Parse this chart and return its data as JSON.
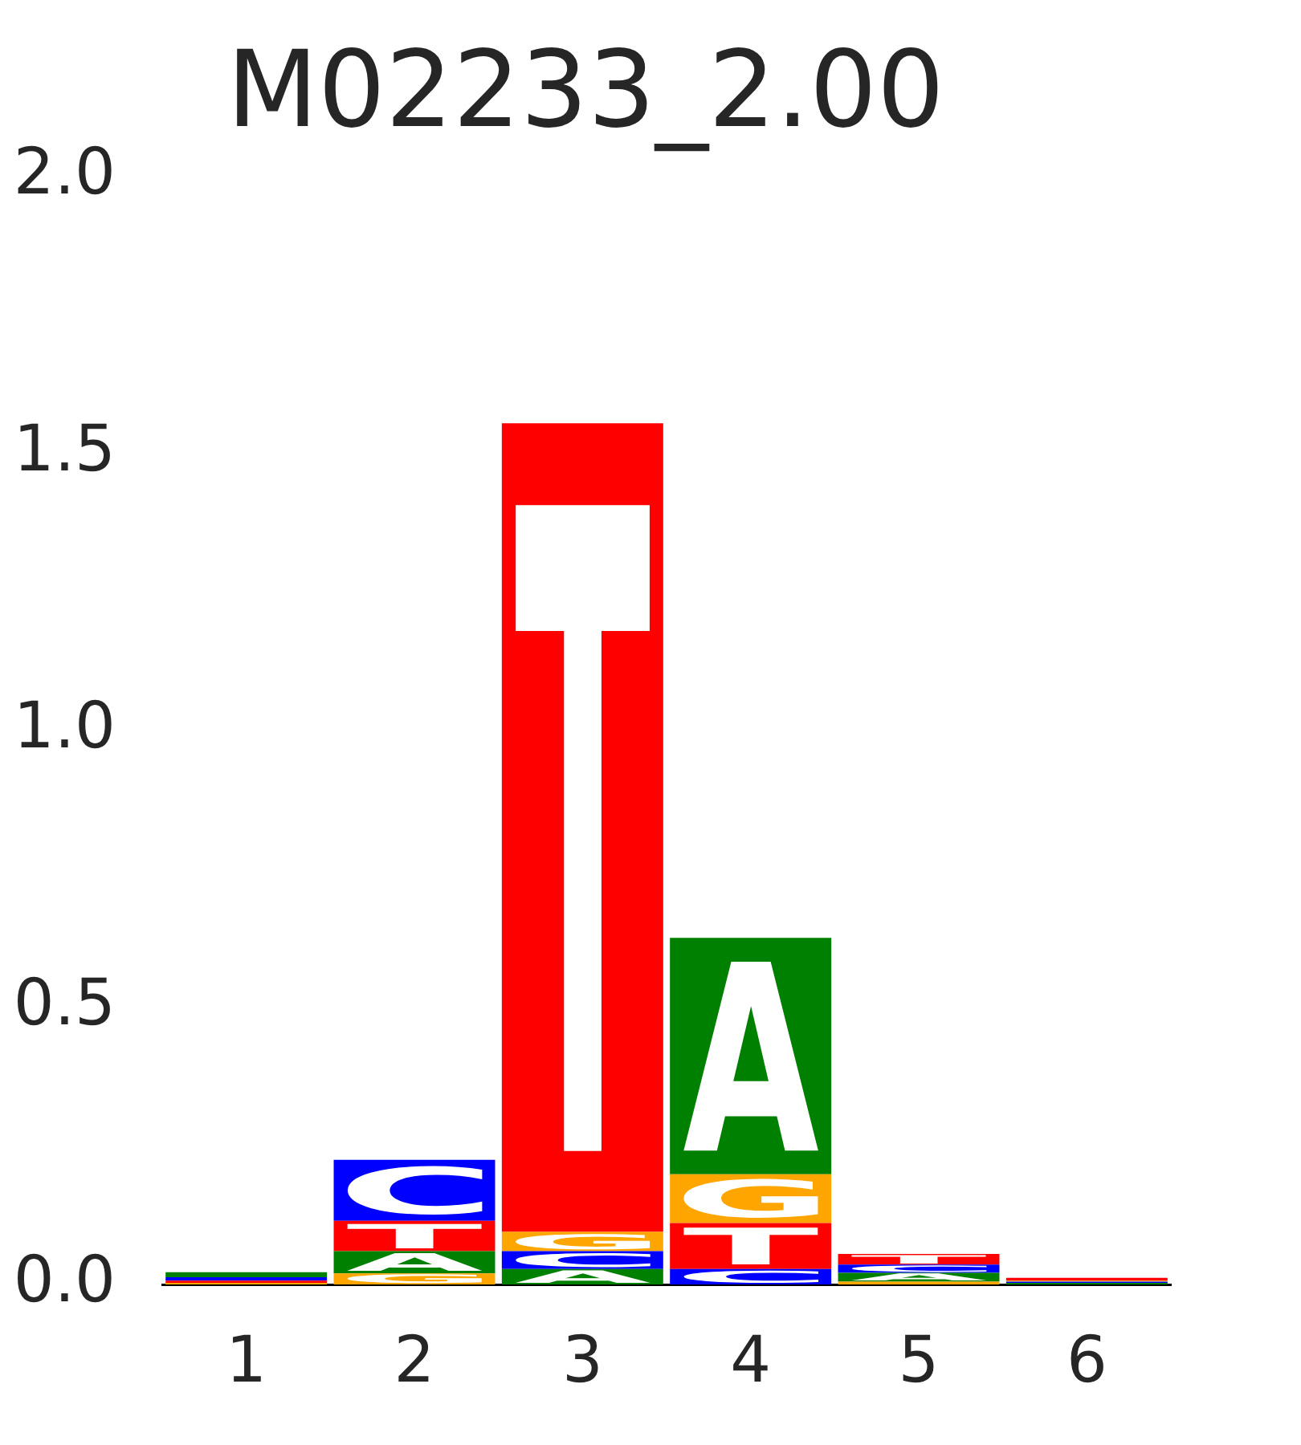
{
  "chart_data": {
    "type": "bar",
    "title": "M02233_2.00",
    "categories": [
      "1",
      "2",
      "3",
      "4",
      "5",
      "6"
    ],
    "stacked": true,
    "series": [
      {
        "values": [
          0.003,
          0.02,
          0.028,
          0.028,
          0.005,
          0.003
        ],
        "colors": [
          "#ffa500",
          "#ffa500",
          "#008000",
          "#0000ff",
          "#ffa500",
          "#008000"
        ],
        "value_labels": [
          null,
          "G",
          "A",
          "C",
          null,
          null
        ]
      },
      {
        "values": [
          0.004,
          0.04,
          0.032,
          0.083,
          0.016,
          0.002
        ],
        "colors": [
          "#ff0000",
          "#008000",
          "#0000ff",
          "#ff0000",
          "#008000",
          "#0000ff"
        ],
        "value_labels": [
          null,
          "A",
          "C",
          "T",
          "A",
          null
        ]
      },
      {
        "values": [
          0.006,
          0.055,
          0.035,
          0.088,
          0.015,
          0.002
        ],
        "colors": [
          "#0000ff",
          "#ff0000",
          "#ffa500",
          "#ffa500",
          "#0000ff",
          "#ffa500"
        ],
        "value_labels": [
          null,
          "T",
          "G",
          "G",
          "C",
          null
        ]
      },
      {
        "values": [
          0.009,
          0.11,
          1.46,
          0.427,
          0.019,
          0.005
        ],
        "colors": [
          "#008000",
          "#0000ff",
          "#ff0000",
          "#008000",
          "#ff0000",
          "#ff0000"
        ],
        "value_labels": [
          null,
          "C",
          "T",
          "A",
          "T",
          null
        ]
      }
    ],
    "ylim": [
      0,
      2
    ],
    "yticks": [
      {
        "value": 0,
        "label": "0.0"
      },
      {
        "value": 0.5,
        "label": "0.5"
      },
      {
        "value": 1,
        "label": "1.0"
      },
      {
        "value": 1.5,
        "label": "1.5"
      },
      {
        "value": 2,
        "label": "2.0"
      }
    ]
  }
}
